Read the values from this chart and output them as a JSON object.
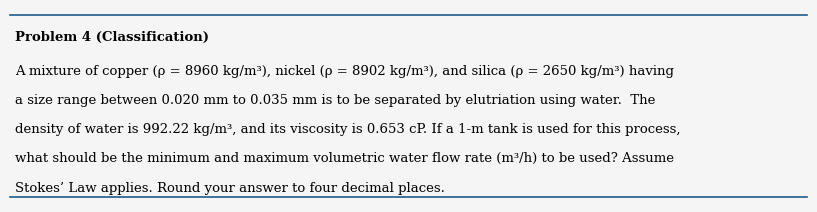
{
  "title": "Problem 4 (Classification)",
  "body_lines": [
    "A mixture of copper (ρ = 8960 kg/m³), nickel (ρ = 8902 kg/m³), and silica (ρ = 2650 kg/m³) having",
    "a size range between 0.020 mm to 0.035 mm is to be separated by elutriation using water.  The",
    "density of water is 992.22 kg/m³, and its viscosity is 0.653 cP. If a 1-m tank is used for this process,",
    "what should be the minimum and maximum volumetric water flow rate (m³/h) to be used? Assume",
    "Stokes’ Law applies. Round your answer to four decimal places."
  ],
  "background_color": "#f5f5f5",
  "line_color": "#1f5c8b",
  "title_fontsize": 9.5,
  "body_fontsize": 9.5,
  "font_family": "DejaVu Serif"
}
